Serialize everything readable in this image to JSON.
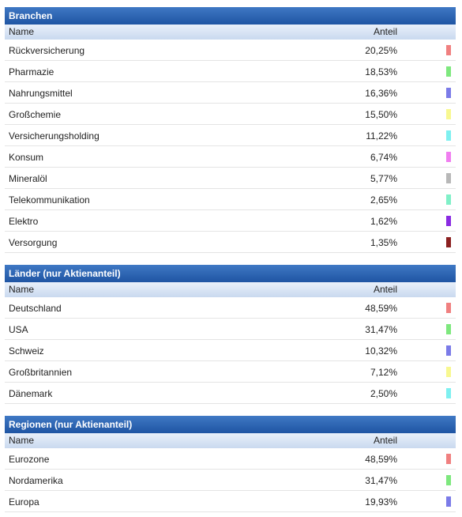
{
  "sections": [
    {
      "title": "Branchen",
      "col_name": "Name",
      "col_share": "Anteil",
      "rows": [
        {
          "label": "Rückversicherung",
          "value": "20,25%",
          "color": "#f08080"
        },
        {
          "label": "Pharmazie",
          "value": "18,53%",
          "color": "#7ee87e"
        },
        {
          "label": "Nahrungsmittel",
          "value": "16,36%",
          "color": "#7b7be8"
        },
        {
          "label": "Großchemie",
          "value": "15,50%",
          "color": "#f8f890"
        },
        {
          "label": "Versicherungsholding",
          "value": "11,22%",
          "color": "#7ef0f0"
        },
        {
          "label": "Konsum",
          "value": "6,74%",
          "color": "#f07ef0"
        },
        {
          "label": "Mineralöl",
          "value": "5,77%",
          "color": "#b8b8b8"
        },
        {
          "label": "Telekommunikation",
          "value": "2,65%",
          "color": "#80f0c8"
        },
        {
          "label": "Elektro",
          "value": "1,62%",
          "color": "#8a2be2"
        },
        {
          "label": "Versorgung",
          "value": "1,35%",
          "color": "#8b2020"
        }
      ]
    },
    {
      "title": "Länder (nur Aktienanteil)",
      "col_name": "Name",
      "col_share": "Anteil",
      "rows": [
        {
          "label": "Deutschland",
          "value": "48,59%",
          "color": "#f08080"
        },
        {
          "label": "USA",
          "value": "31,47%",
          "color": "#7ee87e"
        },
        {
          "label": "Schweiz",
          "value": "10,32%",
          "color": "#7b7be8"
        },
        {
          "label": "Großbritannien",
          "value": "7,12%",
          "color": "#f8f890"
        },
        {
          "label": "Dänemark",
          "value": "2,50%",
          "color": "#7ef0f0"
        }
      ]
    },
    {
      "title": "Regionen (nur Aktienanteil)",
      "col_name": "Name",
      "col_share": "Anteil",
      "rows": [
        {
          "label": "Eurozone",
          "value": "48,59%",
          "color": "#f08080"
        },
        {
          "label": "Nordamerika",
          "value": "31,47%",
          "color": "#7ee87e"
        },
        {
          "label": "Europa",
          "value": "19,93%",
          "color": "#7b7be8"
        }
      ]
    }
  ]
}
